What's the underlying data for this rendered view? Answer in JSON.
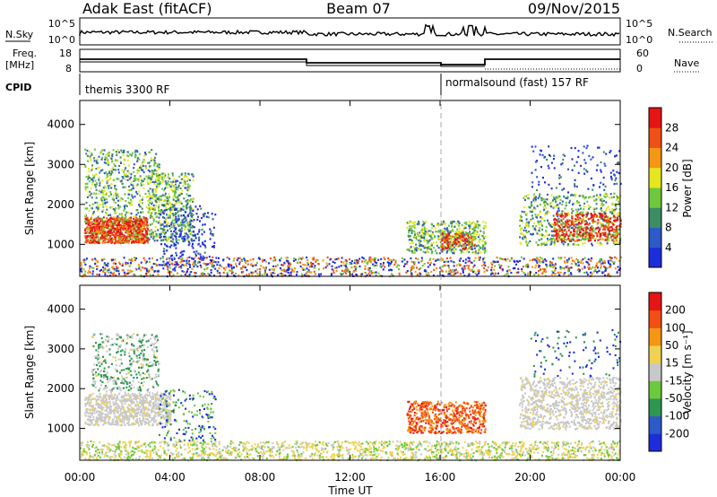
{
  "header": {
    "title_left": "Adak East (fitACF)",
    "title_center": "Beam 07",
    "title_right": "09/Nov/2015"
  },
  "top_panels": {
    "nsky_label": "N.Sky",
    "nsky_ticks": [
      "10^5",
      "10^0"
    ],
    "nsearch_label": "N.Search",
    "nsearch_ticks": [
      "10^5",
      "10^0"
    ],
    "freq_label_1": "Freq.",
    "freq_label_2": "[MHz]",
    "freq_ticks": [
      "18",
      "8"
    ],
    "nave_label": "Nave",
    "nave_ticks": [
      "60",
      "0"
    ],
    "cpid_label": "CPID",
    "cpid_1": "themis 3300 RF",
    "cpid_2": "normalsound (fast) 157 RF"
  },
  "chart_data": [
    {
      "type": "heatmap",
      "name": "power",
      "ylabel": "Slant Range [km]",
      "yticks": [
        1000,
        2000,
        3000,
        4000
      ],
      "ylim": [
        200,
        4600
      ],
      "xlim": [
        0,
        24
      ],
      "colorbar": {
        "label": "Power [dB]",
        "ticks": [
          "28",
          "24",
          "20",
          "16",
          "12",
          "8",
          "4"
        ],
        "colors": [
          "#1e2ddc",
          "#2d5ac8",
          "#3c8c64",
          "#6ec83c",
          "#e6e61e",
          "#f59614",
          "#f05014",
          "#e61414"
        ]
      }
    },
    {
      "type": "heatmap",
      "name": "velocity",
      "ylabel": "Slant Range [km]",
      "yticks": [
        1000,
        2000,
        3000,
        4000
      ],
      "ylim": [
        200,
        4600
      ],
      "xlim": [
        0,
        24
      ],
      "xlabel": "Time UT",
      "xticks": [
        "00:00",
        "04:00",
        "08:00",
        "12:00",
        "16:00",
        "20:00",
        "00:00"
      ],
      "colorbar": {
        "label": "Velocity [m s⁻¹]",
        "ticks": [
          "200",
          "100",
          "50",
          "15",
          "-15",
          "-50",
          "-100",
          "-200"
        ],
        "colors": [
          "#1e2ddc",
          "#2d5ac8",
          "#2d9650",
          "#6ec83c",
          "#c8c8c8",
          "#f0d250",
          "#f59614",
          "#f05014",
          "#e61414"
        ]
      }
    }
  ]
}
